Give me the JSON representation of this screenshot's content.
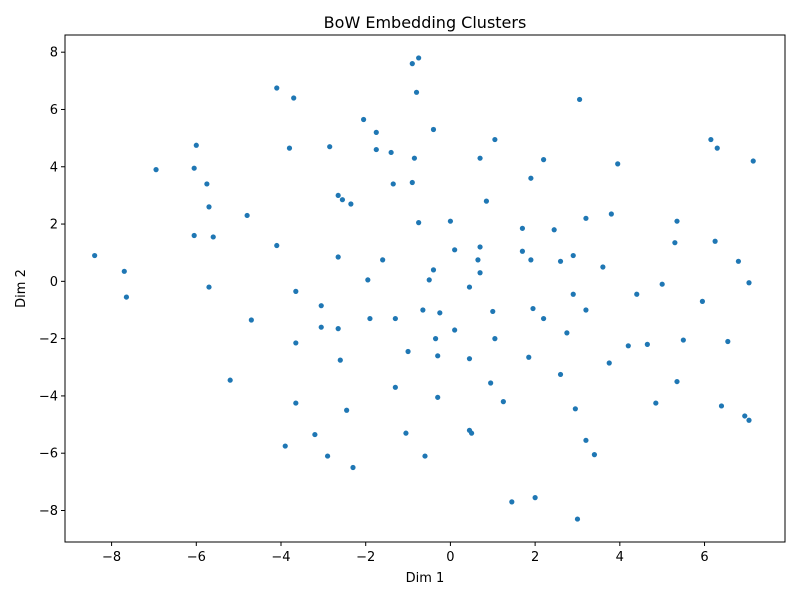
{
  "chart_data": {
    "type": "scatter",
    "title": "BoW Embedding Clusters",
    "xlabel": "Dim 1",
    "ylabel": "Dim 2",
    "xlim": [
      -9.1,
      7.9
    ],
    "ylim": [
      -9.1,
      8.6
    ],
    "xticks": [
      -8,
      -6,
      -4,
      -2,
      0,
      2,
      4,
      6
    ],
    "yticks": [
      -8,
      -6,
      -4,
      -2,
      0,
      2,
      4,
      6,
      8
    ],
    "grid": false,
    "legend": "none",
    "color": "#1f77b4",
    "points": [
      [
        -8.4,
        0.9
      ],
      [
        -7.7,
        0.35
      ],
      [
        -7.65,
        -0.55
      ],
      [
        -6.95,
        3.9
      ],
      [
        -6.0,
        4.75
      ],
      [
        -6.05,
        3.95
      ],
      [
        -5.75,
        3.4
      ],
      [
        -5.7,
        2.6
      ],
      [
        -6.05,
        1.6
      ],
      [
        -5.6,
        1.55
      ],
      [
        -5.7,
        -0.2
      ],
      [
        -5.2,
        -3.45
      ],
      [
        -4.8,
        2.3
      ],
      [
        -4.7,
        -1.35
      ],
      [
        -4.1,
        6.75
      ],
      [
        -4.1,
        1.25
      ],
      [
        -3.8,
        4.65
      ],
      [
        -3.7,
        6.4
      ],
      [
        -3.65,
        -0.35
      ],
      [
        -3.65,
        -2.15
      ],
      [
        -3.65,
        -4.25
      ],
      [
        -3.9,
        -5.75
      ],
      [
        -2.85,
        4.7
      ],
      [
        -3.05,
        -0.85
      ],
      [
        -3.05,
        -1.6
      ],
      [
        -3.2,
        -5.35
      ],
      [
        -2.9,
        -6.1
      ],
      [
        -2.65,
        3.0
      ],
      [
        -2.55,
        2.85
      ],
      [
        -2.35,
        2.7
      ],
      [
        -2.65,
        0.85
      ],
      [
        -2.65,
        -1.65
      ],
      [
        -2.6,
        -2.75
      ],
      [
        -2.45,
        -4.5
      ],
      [
        -2.3,
        -6.5
      ],
      [
        -2.05,
        5.65
      ],
      [
        -1.75,
        5.2
      ],
      [
        -1.75,
        4.6
      ],
      [
        -1.4,
        4.5
      ],
      [
        -1.35,
        3.4
      ],
      [
        -1.6,
        0.75
      ],
      [
        -1.95,
        0.05
      ],
      [
        -1.9,
        -1.3
      ],
      [
        -1.3,
        -1.3
      ],
      [
        -1.3,
        -3.7
      ],
      [
        -1.05,
        -5.3
      ],
      [
        -1.0,
        -2.45
      ],
      [
        -0.9,
        7.6
      ],
      [
        -0.75,
        7.8
      ],
      [
        -0.8,
        6.6
      ],
      [
        -0.85,
        4.3
      ],
      [
        -0.9,
        3.45
      ],
      [
        -0.4,
        5.3
      ],
      [
        -0.75,
        2.05
      ],
      [
        -0.4,
        0.4
      ],
      [
        -0.5,
        0.05
      ],
      [
        -0.65,
        -1.0
      ],
      [
        -0.25,
        -1.1
      ],
      [
        -0.35,
        -2.0
      ],
      [
        -0.3,
        -2.6
      ],
      [
        -0.3,
        -4.05
      ],
      [
        -0.6,
        -6.1
      ],
      [
        0.0,
        2.1
      ],
      [
        0.1,
        1.1
      ],
      [
        0.1,
        -1.7
      ],
      [
        0.45,
        -0.2
      ],
      [
        0.45,
        -2.7
      ],
      [
        0.45,
        -5.2
      ],
      [
        0.5,
        -5.3
      ],
      [
        0.65,
        0.75
      ],
      [
        0.7,
        0.3
      ],
      [
        0.7,
        1.2
      ],
      [
        0.7,
        4.3
      ],
      [
        0.85,
        2.8
      ],
      [
        1.05,
        4.95
      ],
      [
        1.0,
        -1.05
      ],
      [
        1.05,
        -2.0
      ],
      [
        0.95,
        -3.55
      ],
      [
        1.25,
        -4.2
      ],
      [
        1.45,
        -7.7
      ],
      [
        1.7,
        1.85
      ],
      [
        1.7,
        1.05
      ],
      [
        1.9,
        0.75
      ],
      [
        1.9,
        3.6
      ],
      [
        1.95,
        -0.95
      ],
      [
        1.85,
        -2.65
      ],
      [
        2.0,
        -7.55
      ],
      [
        2.2,
        4.25
      ],
      [
        2.45,
        1.8
      ],
      [
        2.2,
        -1.3
      ],
      [
        2.6,
        0.7
      ],
      [
        2.6,
        -3.25
      ],
      [
        2.75,
        -1.8
      ],
      [
        2.9,
        0.9
      ],
      [
        2.9,
        -0.45
      ],
      [
        2.95,
        -4.45
      ],
      [
        3.0,
        -8.3
      ],
      [
        3.05,
        6.35
      ],
      [
        3.2,
        2.2
      ],
      [
        3.2,
        -1.0
      ],
      [
        3.2,
        -5.55
      ],
      [
        3.4,
        -6.05
      ],
      [
        3.6,
        0.5
      ],
      [
        3.75,
        -2.85
      ],
      [
        3.8,
        2.35
      ],
      [
        3.95,
        4.1
      ],
      [
        4.2,
        -2.25
      ],
      [
        4.4,
        -0.45
      ],
      [
        4.65,
        -2.2
      ],
      [
        4.85,
        -4.25
      ],
      [
        5.0,
        -0.1
      ],
      [
        5.3,
        1.35
      ],
      [
        5.35,
        2.1
      ],
      [
        5.35,
        -3.5
      ],
      [
        5.5,
        -2.05
      ],
      [
        5.95,
        -0.7
      ],
      [
        6.15,
        4.95
      ],
      [
        6.25,
        1.4
      ],
      [
        6.3,
        4.65
      ],
      [
        6.4,
        -4.35
      ],
      [
        6.55,
        -2.1
      ],
      [
        6.8,
        0.7
      ],
      [
        6.95,
        -4.7
      ],
      [
        7.05,
        -0.05
      ],
      [
        7.05,
        -4.85
      ],
      [
        7.15,
        4.2
      ]
    ]
  }
}
